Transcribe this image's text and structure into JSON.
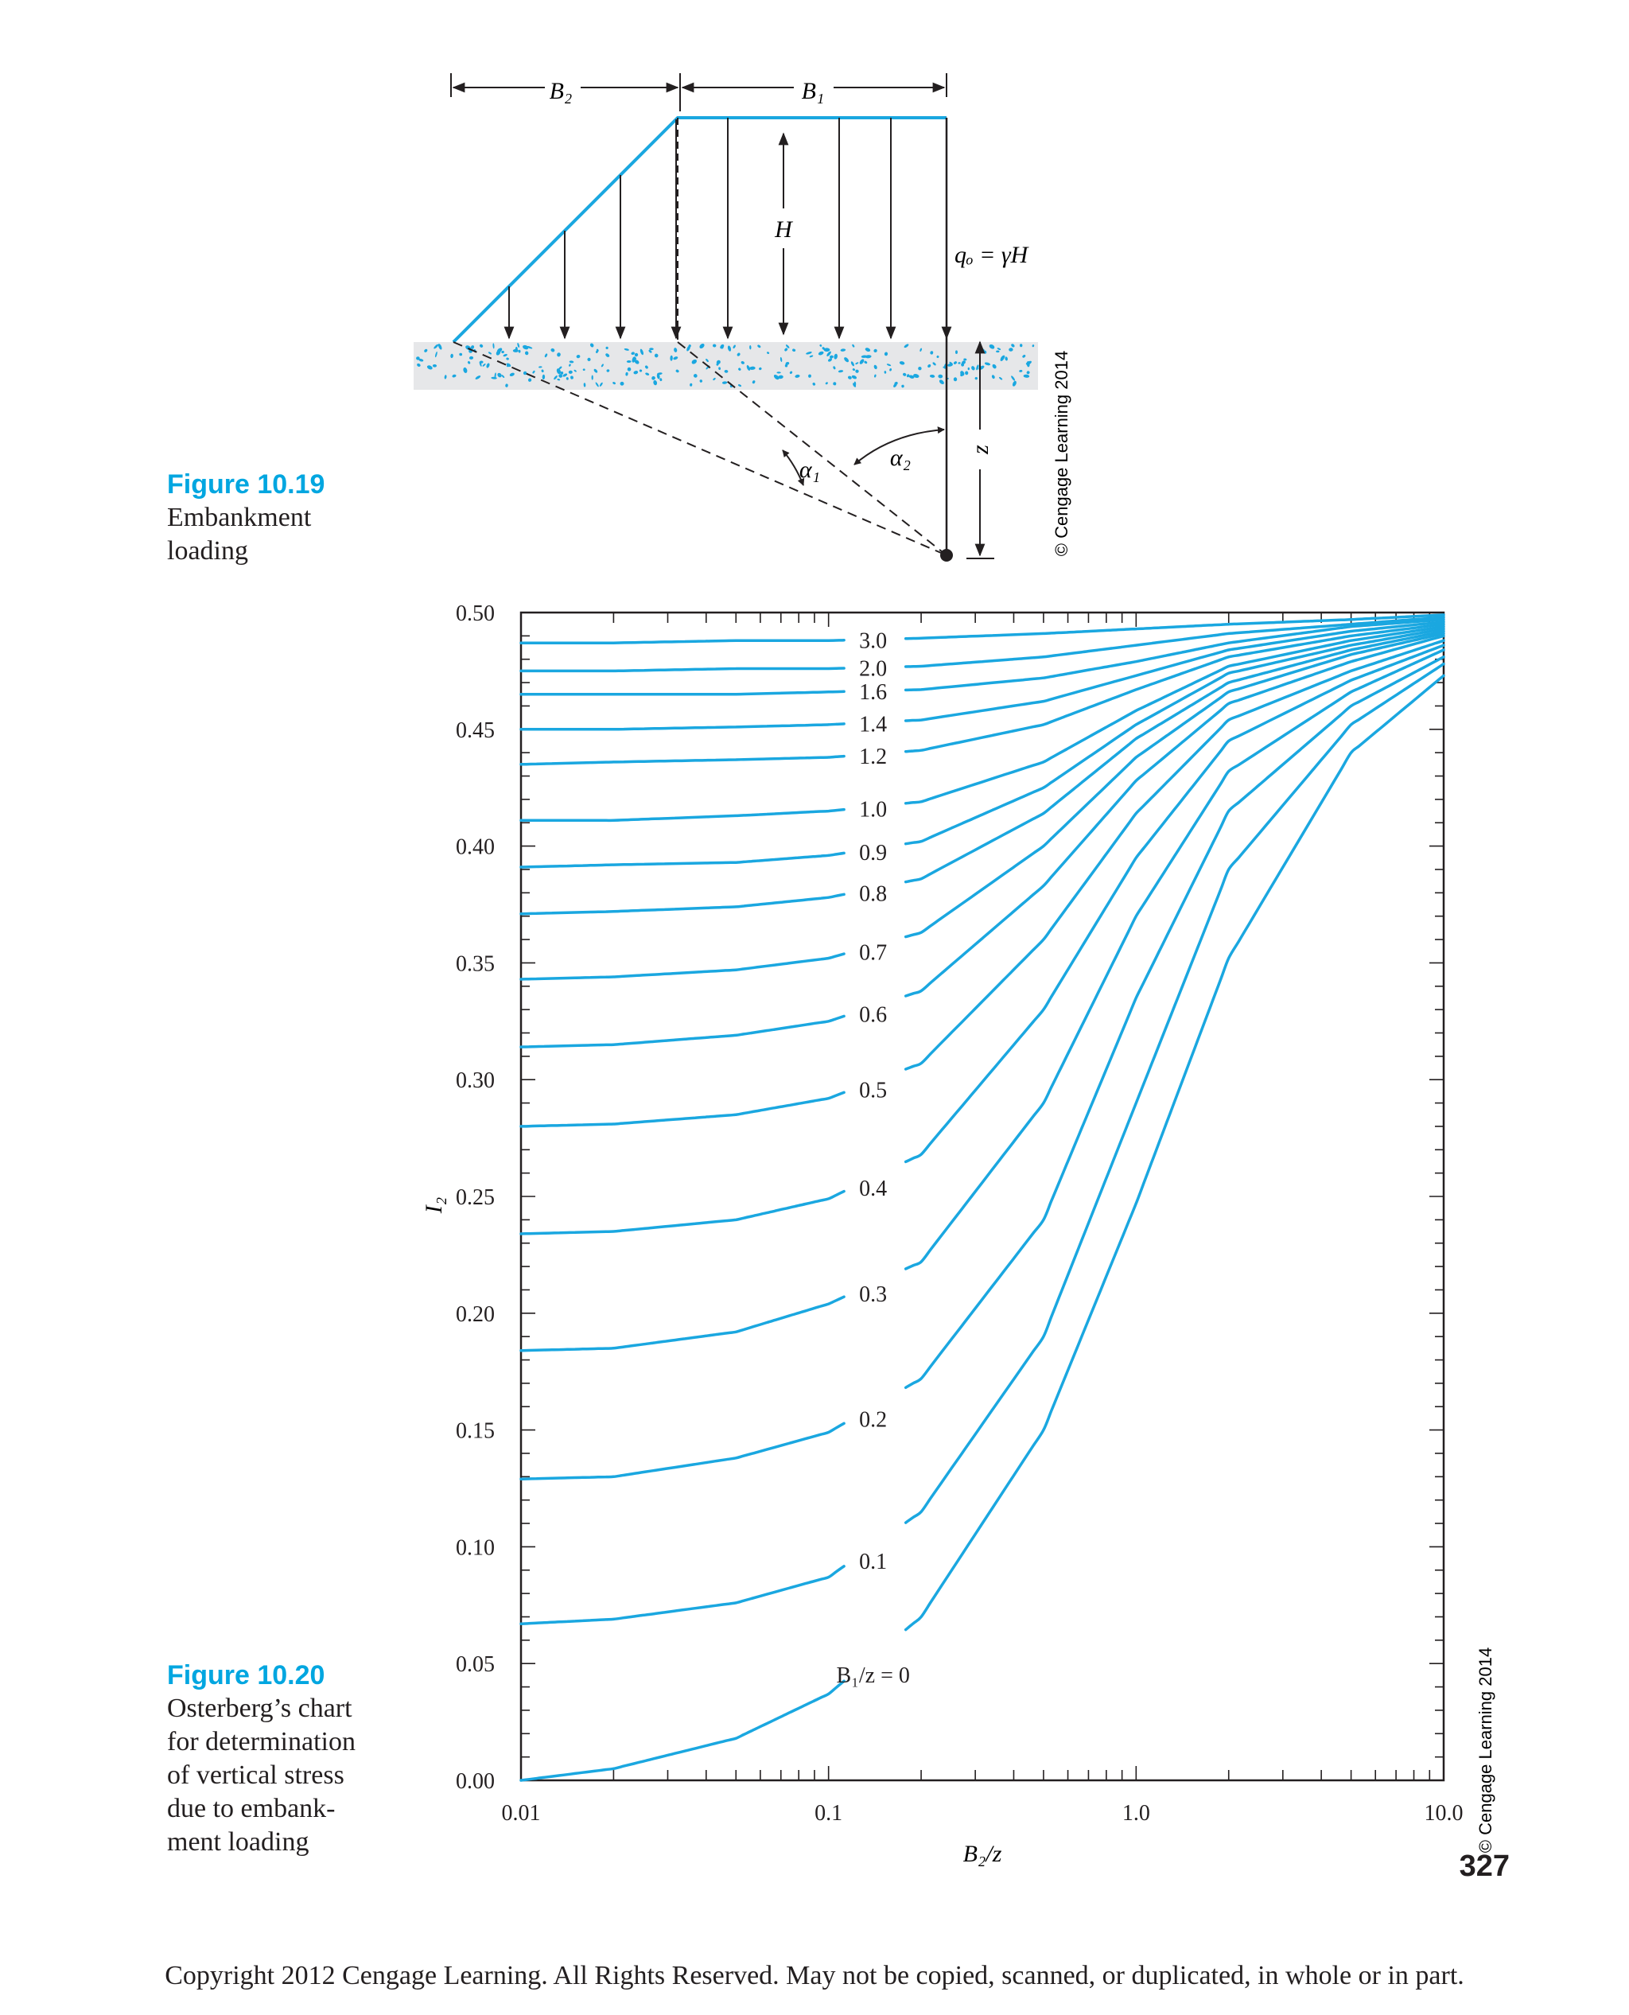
{
  "figure_10_19": {
    "number": "Figure 10.19",
    "caption": "Embankment\nloading",
    "labels": {
      "B2": "B₂",
      "B1": "B₁",
      "H": "H",
      "load": "qₒ = γH",
      "alpha1": "α₁",
      "alpha2": "α₂",
      "z": "z",
      "credit": "© Cengage Learning 2014"
    }
  },
  "figure_10_20": {
    "number": "Figure 10.20",
    "caption": "Osterberg’s chart\nfor determination\nof vertical stress\ndue to embank-\nment loading",
    "credit": "© Cengage Learning 2014"
  },
  "page_number": "327",
  "copyright": "Copyright 2012 Cengage Learning. All Rights Reserved. May not be copied, scanned, or duplicated, in whole or in part.",
  "colors": {
    "curve": "#1aa7e0",
    "accent": "#00a6e0",
    "text": "#231f20"
  },
  "chart_data": {
    "type": "line",
    "title": "",
    "xlabel": "B₂/z",
    "ylabel": "I₂",
    "x_scale": "log",
    "xlim": [
      0.01,
      10.0
    ],
    "ylim": [
      0.0,
      0.5
    ],
    "x_ticks": [
      "0.01",
      "0.1",
      "1.0",
      "10.0"
    ],
    "y_ticks": [
      "0.00",
      "0.05",
      "0.10",
      "0.15",
      "0.20",
      "0.25",
      "0.30",
      "0.35",
      "0.40",
      "0.45",
      "0.50"
    ],
    "x": [
      0.01,
      0.02,
      0.05,
      0.1,
      0.2,
      0.5,
      1.0,
      2.0,
      5.0,
      10.0
    ],
    "series": [
      {
        "name": "B₁/z = 0",
        "values": [
          0.0,
          0.005,
          0.018,
          0.037,
          0.07,
          0.15,
          0.247,
          0.352,
          0.44,
          0.473
        ]
      },
      {
        "name": "0.1",
        "values": [
          0.067,
          0.069,
          0.076,
          0.087,
          0.115,
          0.19,
          0.29,
          0.39,
          0.452,
          0.478
        ]
      },
      {
        "name": "0.2",
        "values": [
          0.129,
          0.13,
          0.138,
          0.149,
          0.172,
          0.24,
          0.335,
          0.415,
          0.46,
          0.481
        ]
      },
      {
        "name": "0.3",
        "values": [
          0.184,
          0.185,
          0.192,
          0.204,
          0.222,
          0.29,
          0.37,
          0.432,
          0.466,
          0.484
        ]
      },
      {
        "name": "0.4",
        "values": [
          0.234,
          0.235,
          0.24,
          0.249,
          0.268,
          0.33,
          0.395,
          0.445,
          0.471,
          0.486
        ]
      },
      {
        "name": "0.5",
        "values": [
          0.28,
          0.281,
          0.285,
          0.292,
          0.307,
          0.36,
          0.414,
          0.454,
          0.475,
          0.488
        ]
      },
      {
        "name": "0.6",
        "values": [
          0.314,
          0.315,
          0.319,
          0.325,
          0.338,
          0.383,
          0.428,
          0.461,
          0.479,
          0.49
        ]
      },
      {
        "name": "0.7",
        "values": [
          0.343,
          0.344,
          0.347,
          0.352,
          0.363,
          0.4,
          0.438,
          0.466,
          0.482,
          0.491
        ]
      },
      {
        "name": "0.8",
        "values": [
          0.371,
          0.372,
          0.374,
          0.378,
          0.386,
          0.414,
          0.446,
          0.47,
          0.484,
          0.492
        ]
      },
      {
        "name": "0.9",
        "values": [
          0.391,
          0.392,
          0.393,
          0.396,
          0.402,
          0.425,
          0.452,
          0.474,
          0.486,
          0.493
        ]
      },
      {
        "name": "1.0",
        "values": [
          0.411,
          0.411,
          0.413,
          0.415,
          0.419,
          0.436,
          0.458,
          0.477,
          0.488,
          0.494
        ]
      },
      {
        "name": "1.2",
        "values": [
          0.435,
          0.436,
          0.437,
          0.438,
          0.441,
          0.452,
          0.467,
          0.481,
          0.49,
          0.495
        ]
      },
      {
        "name": "1.4",
        "values": [
          0.45,
          0.45,
          0.451,
          0.452,
          0.454,
          0.462,
          0.473,
          0.484,
          0.492,
          0.496
        ]
      },
      {
        "name": "1.6",
        "values": [
          0.465,
          0.465,
          0.465,
          0.466,
          0.467,
          0.472,
          0.479,
          0.487,
          0.494,
          0.497
        ]
      },
      {
        "name": "2.0",
        "values": [
          0.475,
          0.475,
          0.476,
          0.476,
          0.477,
          0.481,
          0.486,
          0.491,
          0.495,
          0.498
        ]
      },
      {
        "name": "3.0",
        "values": [
          0.487,
          0.487,
          0.488,
          0.488,
          0.489,
          0.491,
          0.493,
          0.495,
          0.497,
          0.499
        ]
      }
    ]
  }
}
